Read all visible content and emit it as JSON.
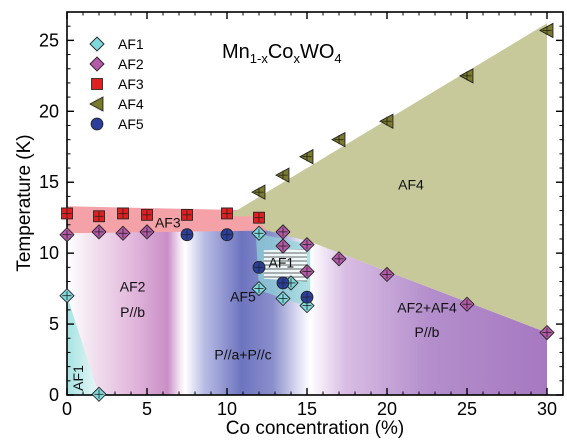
{
  "chart_data": {
    "type": "scatter",
    "title": "Mn1-xCoxWO4",
    "title_parts": {
      "t1": "Mn",
      "s1": "1-x",
      "t2": "Co",
      "s2": "x",
      "t3": "WO",
      "s3": "4"
    },
    "xlabel": "Co concentration (%)",
    "ylabel": "Temperature (K)",
    "xlim": [
      0,
      31
    ],
    "ylim": [
      0,
      27
    ],
    "xticks": [
      "0",
      "5",
      "10",
      "15",
      "20",
      "25",
      "30"
    ],
    "yticks": [
      "0",
      "5",
      "10",
      "15",
      "20",
      "25"
    ],
    "legend_position": "top-left",
    "colors": {
      "AF1": "#7fd8dc",
      "AF2": "#b55aa8",
      "AF3": "#e02020",
      "AF4": "#7a7a2a",
      "AF5": "#2b3f9a",
      "af4_region": "#c8c99a",
      "af3_region": "#f4a2a8",
      "af2_region": "#a678c0",
      "af5_region": "#6d74bf",
      "af1_region": "#a7e3e3"
    },
    "region_labels": [
      {
        "text": "AF4",
        "x": 21.5,
        "y": 14.5
      },
      {
        "text": "AF3",
        "x": 6.3,
        "y": 11.8
      },
      {
        "text": "AF1",
        "x": 13.4,
        "y": 9.0
      },
      {
        "text": "AF2",
        "x": 4.1,
        "y": 7.3
      },
      {
        "text": "P//b",
        "x": 4.1,
        "y": 5.5
      },
      {
        "text": "AF5",
        "x": 11.0,
        "y": 6.6
      },
      {
        "text": "P//a+P//c",
        "x": 11.0,
        "y": 2.5
      },
      {
        "text": "AF2+AF4",
        "x": 22.5,
        "y": 5.8
      },
      {
        "text": "P//b",
        "x": 22.5,
        "y": 4.1
      },
      {
        "text": "AF1",
        "x": 1.0,
        "y": 1.2,
        "rotate": true
      }
    ],
    "series": [
      {
        "name": "AF1",
        "marker": "diamond",
        "points": [
          [
            0,
            7.0
          ],
          [
            2,
            0.05
          ],
          [
            12,
            11.4
          ],
          [
            12,
            7.5
          ],
          [
            13.5,
            6.8
          ],
          [
            14,
            7.9
          ],
          [
            15,
            6.3
          ]
        ]
      },
      {
        "name": "AF2",
        "marker": "diamond",
        "points": [
          [
            0,
            11.3
          ],
          [
            2,
            11.5
          ],
          [
            3.5,
            11.4
          ],
          [
            5,
            11.5
          ],
          [
            13.5,
            11.5
          ],
          [
            13.5,
            10.5
          ],
          [
            15,
            10.6
          ],
          [
            15,
            8.7
          ],
          [
            17,
            9.6
          ],
          [
            20,
            8.5
          ],
          [
            25,
            6.4
          ],
          [
            30,
            4.4
          ]
        ]
      },
      {
        "name": "AF3",
        "marker": "square",
        "points": [
          [
            0,
            12.8
          ],
          [
            2,
            12.6
          ],
          [
            3.5,
            12.8
          ],
          [
            5,
            12.7
          ],
          [
            7.5,
            12.7
          ],
          [
            10,
            12.8
          ],
          [
            12,
            12.5
          ]
        ]
      },
      {
        "name": "AF4",
        "marker": "triangle-left",
        "points": [
          [
            12,
            14.3
          ],
          [
            13.5,
            15.5
          ],
          [
            15,
            16.8
          ],
          [
            17,
            18.0
          ],
          [
            20,
            19.3
          ],
          [
            25,
            22.5
          ],
          [
            30,
            25.7
          ]
        ]
      },
      {
        "name": "AF5",
        "marker": "circle",
        "points": [
          [
            7.5,
            11.3
          ],
          [
            10,
            11.3
          ],
          [
            12,
            9.0
          ],
          [
            13.5,
            7.9
          ],
          [
            15,
            6.9
          ]
        ]
      }
    ]
  }
}
